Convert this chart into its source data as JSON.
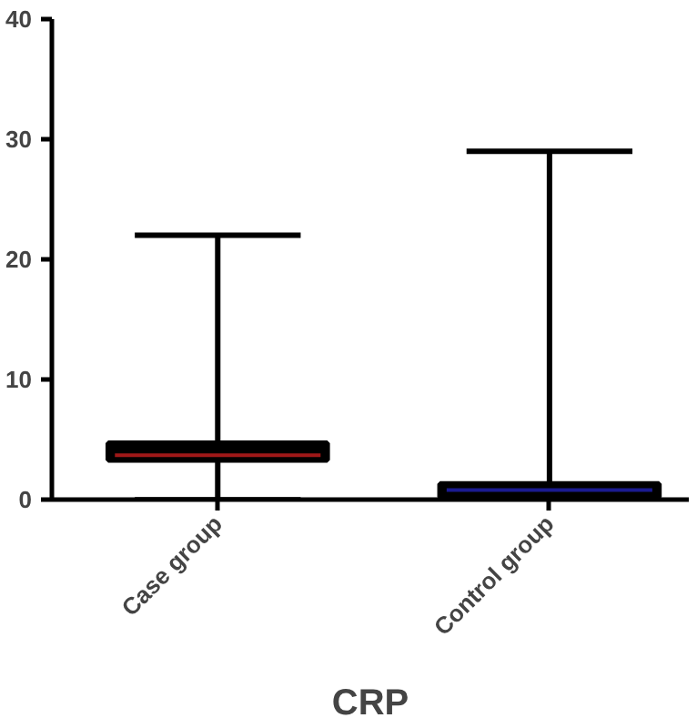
{
  "chart_data": {
    "type": "box",
    "xlabel": "CRP",
    "categories": [
      "Case group",
      "Control group"
    ],
    "boxes": [
      {
        "low": 0.1,
        "q1": 3.3,
        "median": 3.7,
        "q3": 4.7,
        "high": 22
      },
      {
        "low": 0,
        "q1": 0.2,
        "median": 0.8,
        "q3": 1.3,
        "high": 29
      }
    ],
    "ylim": [
      0,
      40
    ],
    "yticks": [
      0,
      10,
      20,
      30,
      40
    ],
    "grid": false
  }
}
